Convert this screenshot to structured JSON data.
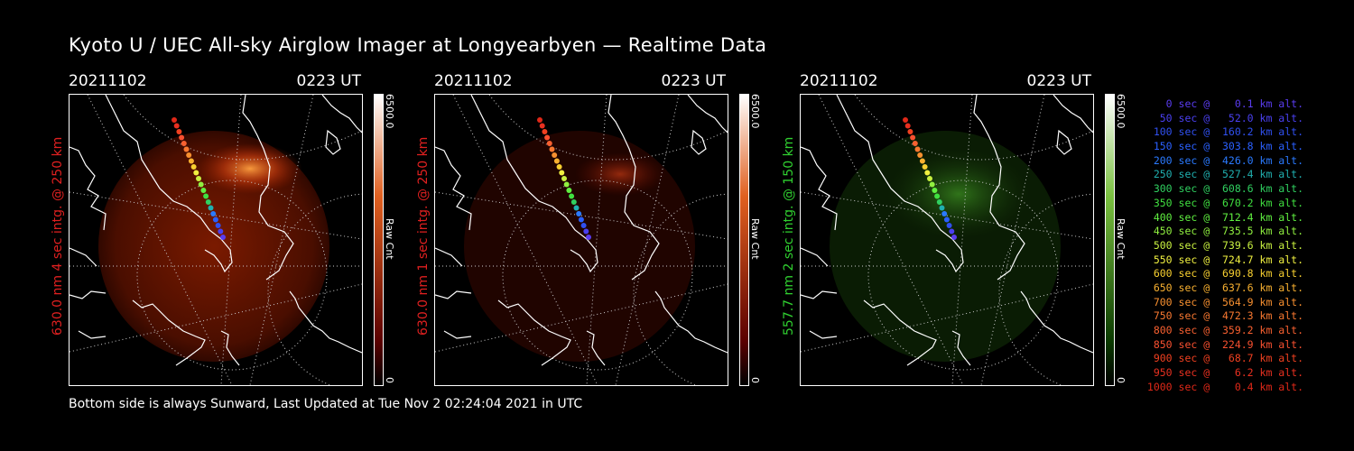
{
  "title": "Kyoto U / UEC All-sky Airglow Imager at Longyearbyen — Realtime Data",
  "footer": "Bottom side is always Sunward, Last Updated at Tue Nov  2 02:24:04 2021 in UTC",
  "panels": [
    {
      "date": "20211102",
      "time": "0223 UT",
      "side_label": "630.0 nm  4 sec intg. @ 250 km",
      "label_color": "#e02020",
      "colorbar_max": "6500.0",
      "colorbar_unit": "Raw Cnt",
      "colorbar_min": "0",
      "colorbar_top": "#ffffff",
      "colorbar_bottom": "#5a0000"
    },
    {
      "date": "20211102",
      "time": "0223 UT",
      "side_label": "630.0 nm  1 sec intg. @ 250 km",
      "label_color": "#e02020",
      "colorbar_max": "6500.0",
      "colorbar_unit": "Raw Cnt",
      "colorbar_min": "0",
      "colorbar_top": "#ffffff",
      "colorbar_bottom": "#5a0000"
    },
    {
      "date": "20211102",
      "time": "0223 UT",
      "side_label": "557.7 nm  2 sec intg. @ 150 km",
      "label_color": "#30d030",
      "colorbar_max": "6500.0",
      "colorbar_unit": "Raw Cnt",
      "colorbar_min": "0",
      "colorbar_top": "#ffffff",
      "colorbar_bottom": "#0a3a00"
    }
  ],
  "legend": [
    {
      "text": "0 sec @    0.1 km alt.",
      "color": "#5a3cf0"
    },
    {
      "text": "50 sec @   52.0 km alt.",
      "color": "#4a40f0"
    },
    {
      "text": "100 sec @  160.2 km alt.",
      "color": "#3050f0"
    },
    {
      "text": "150 sec @  303.8 km alt.",
      "color": "#2a60ff"
    },
    {
      "text": "200 sec @  426.0 km alt.",
      "color": "#2a7aff"
    },
    {
      "text": "250 sec @  527.4 km alt.",
      "color": "#20b0b0"
    },
    {
      "text": "300 sec @  608.6 km alt.",
      "color": "#30d060"
    },
    {
      "text": "350 sec @  670.2 km alt.",
      "color": "#40e040"
    },
    {
      "text": "400 sec @  712.4 km alt.",
      "color": "#60f040"
    },
    {
      "text": "450 sec @  735.5 km alt.",
      "color": "#90f040"
    },
    {
      "text": "500 sec @  739.6 km alt.",
      "color": "#c8f040"
    },
    {
      "text": "550 sec @  724.7 km alt.",
      "color": "#f0f040"
    },
    {
      "text": "600 sec @  690.8 km alt.",
      "color": "#f8d030"
    },
    {
      "text": "650 sec @  637.6 km alt.",
      "color": "#f8b030"
    },
    {
      "text": "700 sec @  564.9 km alt.",
      "color": "#f89030"
    },
    {
      "text": "750 sec @  472.3 km alt.",
      "color": "#f87830"
    },
    {
      "text": "800 sec @  359.2 km alt.",
      "color": "#f86030"
    },
    {
      "text": "850 sec @  224.9 km alt.",
      "color": "#f85030"
    },
    {
      "text": "900 sec @   68.7 km alt.",
      "color": "#f04020"
    },
    {
      "text": "950 sec @    6.2 km alt.",
      "color": "#e83020"
    },
    {
      "text": "1000 sec @    0.4 km alt.",
      "color": "#e02818"
    }
  ],
  "track_colors": [
    "#5a3cf0",
    "#4a40f0",
    "#3050f0",
    "#2a60ff",
    "#2a7aff",
    "#20b0b0",
    "#30d060",
    "#40e040",
    "#60f040",
    "#90f040",
    "#c8f040",
    "#f0f040",
    "#f8d030",
    "#f8b030",
    "#f89030",
    "#f87830",
    "#f86030",
    "#f85030",
    "#f04020",
    "#e83020",
    "#e02818"
  ]
}
